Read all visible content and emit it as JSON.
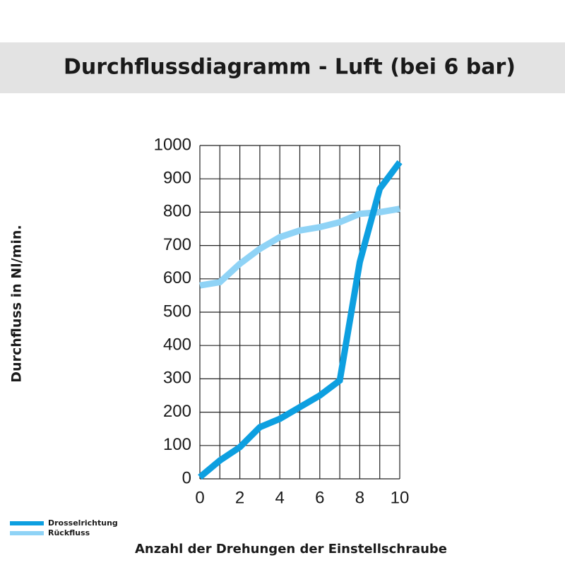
{
  "chart_data": {
    "type": "line",
    "title": "Durchflussdiagramm - Luft (bei 6 bar)",
    "x_label": "Anzahl der Drehungen der Einstellschraube",
    "y_label": "Durchfluss in Nl/min.",
    "x": [
      0,
      1,
      2,
      3,
      4,
      5,
      6,
      7,
      8,
      9,
      10
    ],
    "series": [
      {
        "name": "Drosselrichtung",
        "color": "#0d9fe0",
        "values": [
          5,
          55,
          95,
          155,
          180,
          215,
          250,
          295,
          650,
          870,
          950
        ]
      },
      {
        "name": "Rückfluss",
        "color": "#8fd3f6",
        "values": [
          580,
          590,
          645,
          690,
          725,
          745,
          755,
          770,
          795,
          800,
          810
        ]
      }
    ],
    "xlim": [
      0,
      10
    ],
    "xticks": [
      0,
      2,
      4,
      6,
      8,
      10
    ],
    "x_grid": [
      0,
      1,
      2,
      3,
      4,
      5,
      6,
      7,
      8,
      9,
      10
    ],
    "ylim": [
      0,
      1000
    ],
    "yticks": [
      0,
      100,
      200,
      300,
      400,
      500,
      600,
      700,
      800,
      900,
      1000
    ],
    "grid": true,
    "legend": "bottom-left"
  }
}
